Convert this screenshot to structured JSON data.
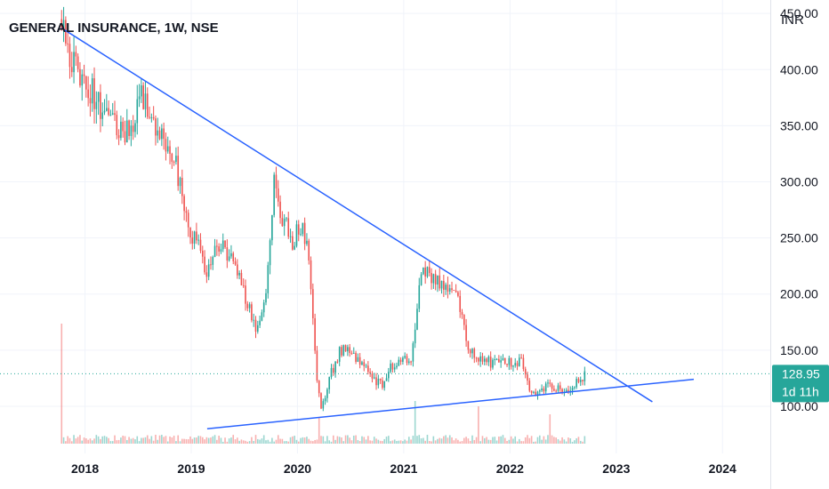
{
  "header": {
    "title": "GENERAL INSURANCE, 1W, NSE",
    "currency": "INR"
  },
  "price_badge": {
    "price": "128.95",
    "countdown": "1d 11h"
  },
  "colors": {
    "up": "#26a69a",
    "down": "#ef5350",
    "trendline": "#2962ff",
    "grid": "#f0f3fa",
    "price_line": "#26a69a"
  },
  "chart_data": {
    "type": "candlestick",
    "x_tick_labels": [
      "2018",
      "2019",
      "2020",
      "2021",
      "2022",
      "2023",
      "2024"
    ],
    "x_ticks": [
      2018.0,
      2019.0,
      2020.0,
      2021.0,
      2022.0,
      2023.0,
      2024.0
    ],
    "xlim": [
      2017.2,
      2024.45
    ],
    "y_tick_labels": [
      "100.00",
      "150.00",
      "200.00",
      "250.00",
      "300.00",
      "350.00",
      "400.00",
      "450.00"
    ],
    "y_ticks": [
      100,
      150,
      200,
      250,
      300,
      350,
      400,
      450
    ],
    "ylim": [
      58,
      462
    ],
    "last_price": 128.95,
    "grid": true,
    "trendlines": [
      {
        "x": [
          2017.78,
          2023.34
        ],
        "y": [
          437,
          104
        ]
      },
      {
        "x": [
          2019.15,
          2023.73
        ],
        "y": [
          80,
          124
        ]
      }
    ],
    "price_anchors": [
      [
        2017.78,
        445
      ],
      [
        2017.82,
        418
      ],
      [
        2017.95,
        395
      ],
      [
        2018.1,
        375
      ],
      [
        2018.25,
        352
      ],
      [
        2018.4,
        345
      ],
      [
        2018.55,
        378
      ],
      [
        2018.62,
        350
      ],
      [
        2018.72,
        345
      ],
      [
        2018.85,
        320
      ],
      [
        2018.95,
        265
      ],
      [
        2019.08,
        240
      ],
      [
        2019.15,
        218
      ],
      [
        2019.25,
        245
      ],
      [
        2019.35,
        235
      ],
      [
        2019.45,
        215
      ],
      [
        2019.55,
        185
      ],
      [
        2019.62,
        165
      ],
      [
        2019.7,
        195
      ],
      [
        2019.78,
        298
      ],
      [
        2019.85,
        270
      ],
      [
        2019.95,
        245
      ],
      [
        2020.05,
        265
      ],
      [
        2020.12,
        220
      ],
      [
        2020.18,
        130
      ],
      [
        2020.22,
        95
      ],
      [
        2020.3,
        125
      ],
      [
        2020.4,
        150
      ],
      [
        2020.5,
        148
      ],
      [
        2020.6,
        140
      ],
      [
        2020.7,
        125
      ],
      [
        2020.8,
        120
      ],
      [
        2020.9,
        138
      ],
      [
        2021.0,
        142
      ],
      [
        2021.08,
        145
      ],
      [
        2021.15,
        215
      ],
      [
        2021.2,
        220
      ],
      [
        2021.3,
        210
      ],
      [
        2021.4,
        210
      ],
      [
        2021.5,
        205
      ],
      [
        2021.55,
        180
      ],
      [
        2021.62,
        150
      ],
      [
        2021.72,
        142
      ],
      [
        2021.85,
        138
      ],
      [
        2021.95,
        138
      ],
      [
        2022.05,
        140
      ],
      [
        2022.12,
        138
      ],
      [
        2022.18,
        118
      ],
      [
        2022.25,
        110
      ],
      [
        2022.35,
        120
      ],
      [
        2022.45,
        115
      ],
      [
        2022.55,
        110
      ],
      [
        2022.62,
        120
      ],
      [
        2022.72,
        129
      ]
    ],
    "volume": {
      "spike_x": [
        2017.78,
        2020.2,
        2021.1,
        2021.7,
        2022.38
      ],
      "spike_height": [
        0.9,
        0.2,
        0.32,
        0.28,
        0.22
      ]
    }
  }
}
